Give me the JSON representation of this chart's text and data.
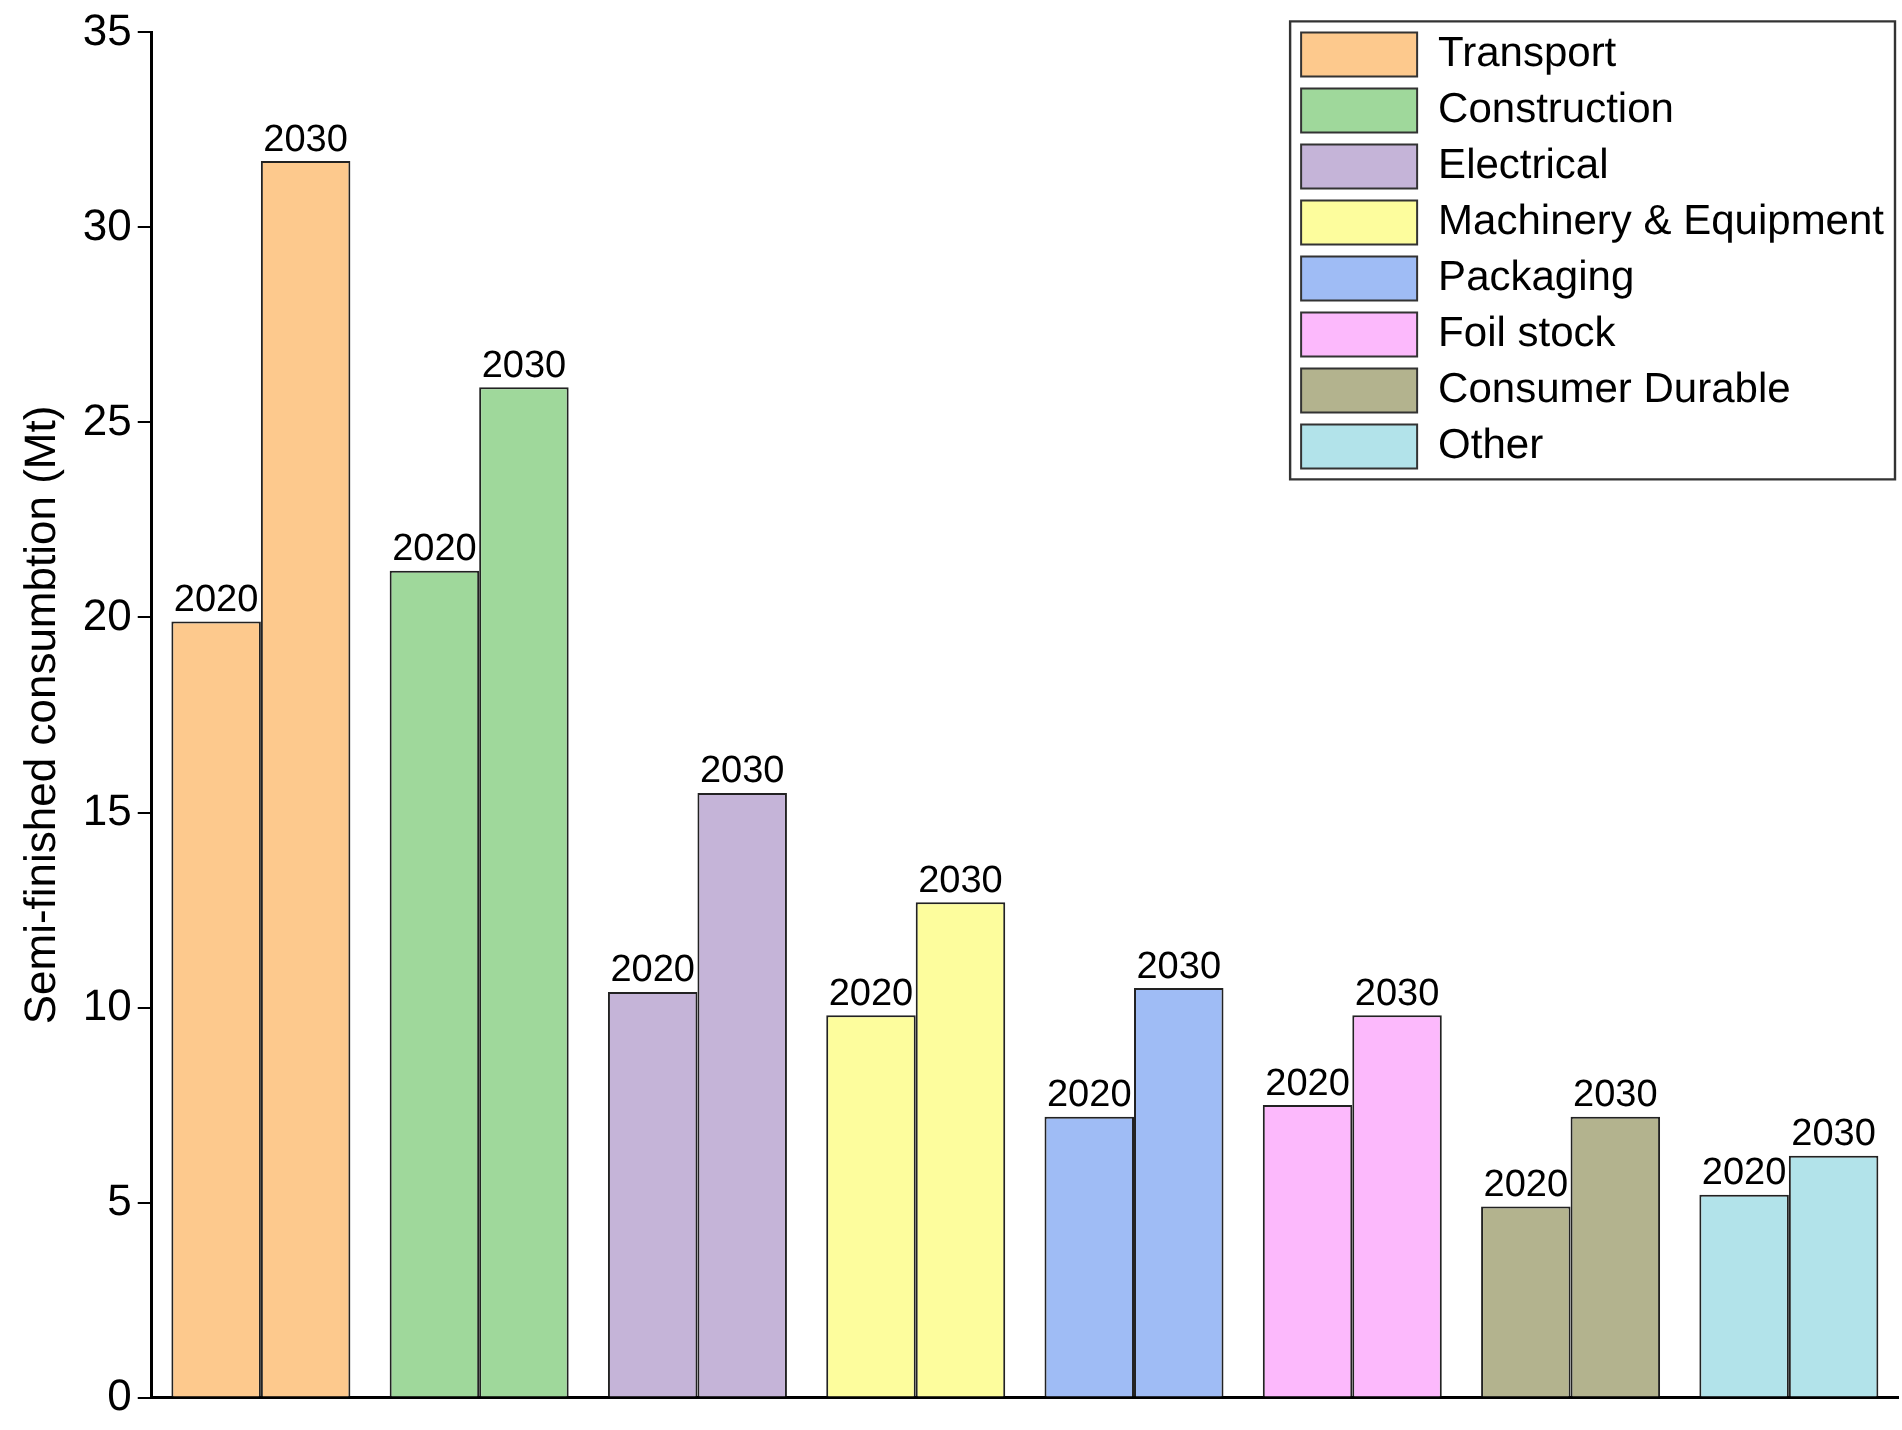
{
  "chart_data": {
    "type": "bar",
    "ylabel": "Semi-finished consumbtion (Mt)",
    "categories": [
      null,
      null,
      null,
      null,
      null,
      null,
      null,
      null,
      null,
      null,
      null,
      null,
      null,
      null,
      null,
      null
    ],
    "series": [
      {
        "name": "Transport",
        "color": "#fdc98d",
        "values": [
          19.9,
          31.7,
          null,
          null,
          null,
          null,
          null,
          null,
          null,
          null,
          null,
          null,
          null,
          null,
          null,
          null
        ]
      },
      {
        "name": "Construction",
        "color": "#9fd89b",
        "values": [
          null,
          null,
          21.2,
          25.9,
          null,
          null,
          null,
          null,
          null,
          null,
          null,
          null,
          null,
          null,
          null,
          null
        ]
      },
      {
        "name": "Electrical",
        "color": "#c5b4d8",
        "values": [
          null,
          null,
          null,
          null,
          10.4,
          15.5,
          null,
          null,
          null,
          null,
          null,
          null,
          null,
          null,
          null,
          null
        ]
      },
      {
        "name": "Machinery & Equipment",
        "color": "#fdfd9d",
        "values": [
          null,
          null,
          null,
          null,
          null,
          null,
          9.8,
          12.7,
          null,
          null,
          null,
          null,
          null,
          null,
          null,
          null
        ]
      },
      {
        "name": "Packaging",
        "color": "#9fbcf5",
        "values": [
          null,
          null,
          null,
          null,
          null,
          null,
          null,
          null,
          7.2,
          10.5,
          null,
          null,
          null,
          null,
          null,
          null
        ]
      },
      {
        "name": "Foil stock",
        "color": "#fcb9fc",
        "values": [
          null,
          null,
          null,
          null,
          null,
          null,
          null,
          null,
          null,
          null,
          7.5,
          9.8,
          null,
          null,
          null,
          null
        ]
      },
      {
        "name": "Consumer Durable",
        "color": "#b3b38e",
        "values": [
          null,
          null,
          null,
          null,
          null,
          null,
          null,
          null,
          null,
          null,
          null,
          null,
          4.9,
          7.2,
          null,
          null
        ]
      },
      {
        "name": "Other",
        "color": "#b2e3ea",
        "values": [
          null,
          null,
          null,
          null,
          null,
          null,
          null,
          null,
          null,
          null,
          null,
          null,
          null,
          null,
          5.2,
          6.2
        ]
      }
    ],
    "annotations": [
      "2020",
      "2030",
      "2020",
      "2030",
      "2020",
      "2030",
      "2020",
      "2030",
      "2020",
      "2030",
      "2020",
      "2030",
      "2020",
      "2030",
      "2020",
      "2030"
    ],
    "ylim": [
      0,
      35
    ],
    "yticks": [
      0,
      5,
      10,
      15,
      20,
      25,
      30,
      35
    ],
    "grid": false,
    "legend": "top right",
    "tick_labels": "y"
  }
}
